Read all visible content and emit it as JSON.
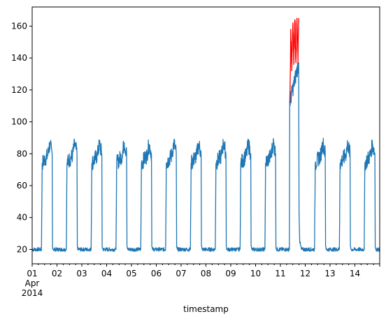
{
  "chart_data": {
    "type": "line",
    "title": "",
    "xlabel": "timestamp",
    "ylabel": "",
    "x_domain": [
      "2014-04-01",
      "2014-04-15"
    ],
    "ylim": [
      11,
      172
    ],
    "grid": false,
    "legend": null,
    "x_ticks": [
      {
        "date": "2014-04-01",
        "label": "01",
        "sub1": "Apr",
        "sub2": "2014"
      },
      {
        "date": "2014-04-02",
        "label": "02"
      },
      {
        "date": "2014-04-03",
        "label": "03"
      },
      {
        "date": "2014-04-04",
        "label": "04"
      },
      {
        "date": "2014-04-05",
        "label": "05"
      },
      {
        "date": "2014-04-06",
        "label": "06"
      },
      {
        "date": "2014-04-07",
        "label": "07"
      },
      {
        "date": "2014-04-08",
        "label": "08"
      },
      {
        "date": "2014-04-09",
        "label": "09"
      },
      {
        "date": "2014-04-10",
        "label": "10"
      },
      {
        "date": "2014-04-11",
        "label": "11"
      },
      {
        "date": "2014-04-12",
        "label": "12"
      },
      {
        "date": "2014-04-13",
        "label": "13"
      },
      {
        "date": "2014-04-14",
        "label": "14"
      }
    ],
    "y_ticks": [
      20,
      40,
      60,
      80,
      100,
      120,
      140,
      160
    ],
    "series": [
      {
        "color": "#1f77b4",
        "points": [
          [
            "2014-04-01 00:00",
            20
          ],
          [
            "2014-04-01 09:00",
            20
          ],
          [
            "2014-04-01 09:40",
            74
          ],
          [
            "2014-04-01 15:00",
            79
          ],
          [
            "2014-04-01 17:00",
            86
          ],
          [
            "2014-04-01 19:20",
            80
          ],
          [
            "2014-04-01 19:40",
            22
          ],
          [
            "2014-04-01 20:20",
            20
          ],
          [
            "2014-04-02 09:00",
            20
          ],
          [
            "2014-04-02 09:40",
            74
          ],
          [
            "2014-04-02 15:00",
            79
          ],
          [
            "2014-04-02 17:00",
            86
          ],
          [
            "2014-04-02 19:20",
            80
          ],
          [
            "2014-04-02 19:40",
            22
          ],
          [
            "2014-04-02 20:20",
            20
          ],
          [
            "2014-04-03 09:00",
            20
          ],
          [
            "2014-04-03 09:40",
            74
          ],
          [
            "2014-04-03 15:00",
            79
          ],
          [
            "2014-04-03 17:00",
            86
          ],
          [
            "2014-04-03 19:20",
            80
          ],
          [
            "2014-04-03 19:40",
            22
          ],
          [
            "2014-04-03 20:20",
            20
          ],
          [
            "2014-04-04 09:00",
            20
          ],
          [
            "2014-04-04 09:40",
            74
          ],
          [
            "2014-04-04 15:00",
            79
          ],
          [
            "2014-04-04 17:00",
            87
          ],
          [
            "2014-04-04 19:20",
            80
          ],
          [
            "2014-04-04 19:40",
            22
          ],
          [
            "2014-04-04 20:20",
            20
          ],
          [
            "2014-04-05 09:00",
            20
          ],
          [
            "2014-04-05 09:40",
            74
          ],
          [
            "2014-04-05 15:00",
            79
          ],
          [
            "2014-04-05 17:00",
            86
          ],
          [
            "2014-04-05 19:20",
            80
          ],
          [
            "2014-04-05 19:40",
            22
          ],
          [
            "2014-04-05 20:20",
            20
          ],
          [
            "2014-04-06 09:00",
            20
          ],
          [
            "2014-04-06 09:40",
            74
          ],
          [
            "2014-04-06 15:00",
            79
          ],
          [
            "2014-04-06 17:00",
            87
          ],
          [
            "2014-04-06 19:20",
            80
          ],
          [
            "2014-04-06 19:40",
            22
          ],
          [
            "2014-04-06 20:20",
            20
          ],
          [
            "2014-04-07 09:00",
            20
          ],
          [
            "2014-04-07 09:40",
            74
          ],
          [
            "2014-04-07 15:00",
            79
          ],
          [
            "2014-04-07 17:00",
            86
          ],
          [
            "2014-04-07 19:20",
            80
          ],
          [
            "2014-04-07 19:40",
            22
          ],
          [
            "2014-04-07 20:20",
            20
          ],
          [
            "2014-04-08 09:00",
            20
          ],
          [
            "2014-04-08 09:40",
            74
          ],
          [
            "2014-04-08 15:00",
            79
          ],
          [
            "2014-04-08 17:00",
            87
          ],
          [
            "2014-04-08 19:20",
            80
          ],
          [
            "2014-04-08 19:40",
            22
          ],
          [
            "2014-04-08 20:20",
            20
          ],
          [
            "2014-04-09 09:00",
            20
          ],
          [
            "2014-04-09 09:40",
            74
          ],
          [
            "2014-04-09 15:00",
            79
          ],
          [
            "2014-04-09 17:00",
            86
          ],
          [
            "2014-04-09 19:20",
            80
          ],
          [
            "2014-04-09 19:40",
            22
          ],
          [
            "2014-04-09 20:20",
            20
          ],
          [
            "2014-04-10 09:00",
            20
          ],
          [
            "2014-04-10 09:40",
            74
          ],
          [
            "2014-04-10 15:00",
            79
          ],
          [
            "2014-04-10 17:00",
            87
          ],
          [
            "2014-04-10 19:20",
            80
          ],
          [
            "2014-04-10 19:40",
            22
          ],
          [
            "2014-04-10 20:20",
            20
          ],
          [
            "2014-04-11 08:40",
            20
          ],
          [
            "2014-04-11 09:00",
            112
          ],
          [
            "2014-04-11 17:40",
            137
          ],
          [
            "2014-04-11 18:00",
            45
          ],
          [
            "2014-04-11 18:40",
            25
          ],
          [
            "2014-04-11 20:20",
            20
          ],
          [
            "2014-04-12 09:00",
            20
          ],
          [
            "2014-04-12 09:40",
            74
          ],
          [
            "2014-04-12 15:00",
            79
          ],
          [
            "2014-04-12 17:00",
            87
          ],
          [
            "2014-04-12 19:20",
            80
          ],
          [
            "2014-04-12 19:40",
            22
          ],
          [
            "2014-04-12 20:20",
            20
          ],
          [
            "2014-04-13 09:00",
            20
          ],
          [
            "2014-04-13 09:40",
            74
          ],
          [
            "2014-04-13 15:00",
            79
          ],
          [
            "2014-04-13 17:00",
            86
          ],
          [
            "2014-04-13 19:20",
            80
          ],
          [
            "2014-04-13 19:40",
            22
          ],
          [
            "2014-04-13 20:20",
            20
          ],
          [
            "2014-04-14 09:00",
            20
          ],
          [
            "2014-04-14 09:40",
            74
          ],
          [
            "2014-04-14 15:00",
            79
          ],
          [
            "2014-04-14 17:00",
            86
          ],
          [
            "2014-04-14 19:20",
            80
          ],
          [
            "2014-04-14 19:40",
            22
          ],
          [
            "2014-04-14 20:20",
            20
          ],
          [
            "2014-04-14 23:59",
            20
          ]
        ]
      },
      {
        "color": "#ff0000",
        "points": [
          [
            "2014-04-11 09:00",
            112
          ],
          [
            "2014-04-11 09:30",
            128
          ],
          [
            "2014-04-11 10:00",
            158
          ],
          [
            "2014-04-11 11:00",
            132
          ],
          [
            "2014-04-11 12:00",
            162
          ],
          [
            "2014-04-11 13:00",
            136
          ],
          [
            "2014-04-11 14:00",
            164
          ],
          [
            "2014-04-11 15:00",
            137
          ],
          [
            "2014-04-11 16:00",
            165
          ],
          [
            "2014-04-11 17:00",
            137
          ],
          [
            "2014-04-11 17:40",
            165
          ]
        ]
      }
    ]
  }
}
